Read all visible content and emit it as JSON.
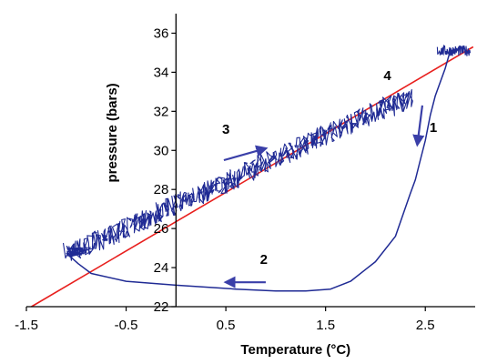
{
  "chart_data": {
    "type": "line",
    "title": "",
    "xlabel": "Temperature (°C)",
    "ylabel": "pressure (bars)",
    "xlim": [
      -1.5,
      3.0
    ],
    "ylim": [
      22,
      37
    ],
    "x_ticks": [
      -1.5,
      -0.5,
      0.5,
      1.5,
      2.5
    ],
    "x_tick_labels": [
      "-1.5",
      "-0.5",
      "0.5",
      "1.5",
      "2.5"
    ],
    "y_ticks": [
      22,
      24,
      26,
      28,
      30,
      32,
      34,
      36
    ],
    "y_tick_labels": [
      "22",
      "24",
      "26",
      "28",
      "30",
      "32",
      "34",
      "36"
    ],
    "y_axis_at_x": 0,
    "grid": false,
    "legend": "none",
    "series": [
      {
        "role": "equilibrium-line",
        "color": "#e8201e",
        "x": [
          -1.45,
          2.98
        ],
        "y": [
          22.0,
          35.3
        ]
      },
      {
        "role": "cycle-trace",
        "color": "#1f2a94",
        "x": [
          2.75,
          2.7,
          2.6,
          2.55,
          2.5,
          2.45,
          2.4,
          2.35,
          2.2,
          2.0,
          1.9,
          1.75,
          1.55,
          1.3,
          1.0,
          0.6,
          0.0,
          -0.5,
          -0.85,
          -0.98,
          -1.1
        ],
        "y": [
          35.1,
          34.2,
          32.8,
          31.8,
          30.5,
          29.5,
          28.5,
          27.8,
          25.6,
          24.3,
          23.9,
          23.3,
          22.9,
          22.8,
          22.8,
          22.9,
          23.1,
          23.3,
          23.7,
          24.2,
          24.75
        ]
      },
      {
        "role": "noisy-band",
        "color": "#1f2a94",
        "x": [
          -1.1,
          -0.9,
          -0.6,
          -0.3,
          0.0,
          0.3,
          0.6,
          0.9,
          1.2,
          1.5,
          1.8,
          2.1,
          2.35
        ],
        "y": [
          24.8,
          25.1,
          25.8,
          26.5,
          27.3,
          27.9,
          28.6,
          29.4,
          30.1,
          30.8,
          31.5,
          32.2,
          32.6
        ]
      },
      {
        "role": "noisy-start",
        "color": "#1f2a94",
        "x": [
          2.62,
          2.95
        ],
        "y": [
          35.1,
          35.1
        ]
      }
    ],
    "annotations": [
      {
        "label": "1",
        "x": 2.58,
        "y": 30.95,
        "arrow": {
          "from": [
            2.47,
            32.3
          ],
          "to": [
            2.42,
            30.3
          ]
        }
      },
      {
        "label": "2",
        "x": 0.88,
        "y": 24.2,
        "arrow": {
          "from": [
            0.9,
            23.25
          ],
          "to": [
            0.5,
            23.25
          ]
        }
      },
      {
        "label": "3",
        "x": 0.5,
        "y": 30.85,
        "arrow": {
          "from": [
            0.48,
            29.5
          ],
          "to": [
            0.9,
            30.1
          ]
        }
      },
      {
        "label": "4",
        "x": 2.12,
        "y": 33.6
      }
    ]
  }
}
